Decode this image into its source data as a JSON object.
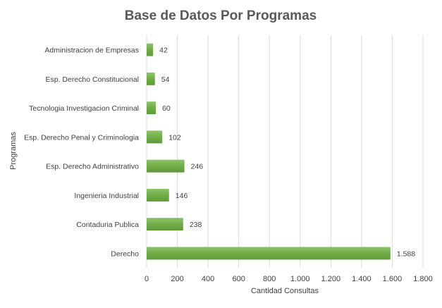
{
  "chart_data": {
    "type": "bar",
    "orientation": "horizontal",
    "title": "Base de Datos Por Programas",
    "xlabel": "Cantidad Consultas",
    "ylabel": "Programas",
    "categories": [
      "Administracion de Empresas",
      "Esp. Derecho Constitucional",
      "Tecnologia Investigacion Criminal",
      "Esp. Derecho Penal y Criminologia",
      "Esp. Derecho Administrativo",
      "Ingenieria Industrial",
      "Contaduria Publica",
      "Derecho"
    ],
    "values": [
      42,
      54,
      60,
      102,
      246,
      146,
      238,
      1588
    ],
    "data_labels": [
      "42",
      "54",
      "60",
      "102",
      "246",
      "146",
      "238",
      "1.588"
    ],
    "xlim": [
      0,
      1800
    ],
    "x_ticks": [
      0,
      200,
      400,
      600,
      800,
      1000,
      1200,
      1400,
      1600,
      1800
    ],
    "x_tick_labels": [
      "0",
      "200",
      "400",
      "600",
      "800",
      "1.000",
      "1.200",
      "1.400",
      "1.600",
      "1.800"
    ],
    "grid": true,
    "bar_color": "#70ad47",
    "legend": "none"
  }
}
